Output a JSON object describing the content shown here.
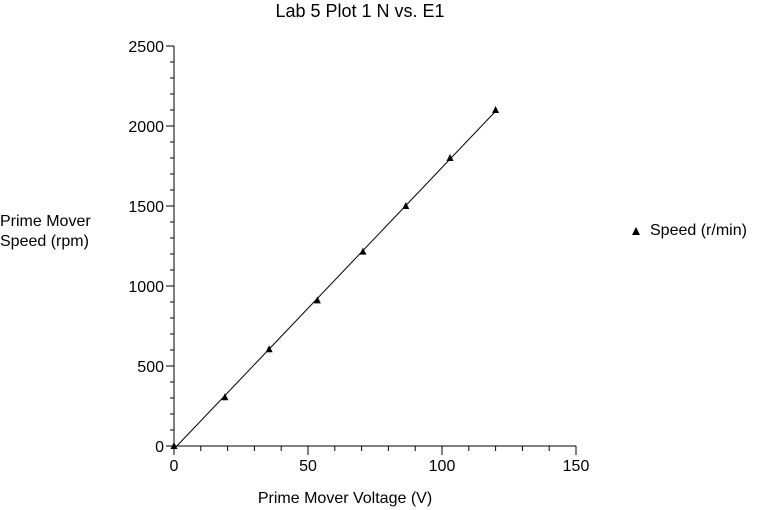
{
  "chart_data": {
    "type": "scatter",
    "title": "Lab 5 Plot 1  N vs. E1",
    "xlabel": "Prime Mover Voltage (V)",
    "ylabel": "Prime Mover\nSpeed (rpm)",
    "xlim": [
      0,
      150
    ],
    "ylim": [
      0,
      2500
    ],
    "xticks": [
      0,
      50,
      100,
      150
    ],
    "yticks": [
      0,
      500,
      1000,
      1500,
      2000,
      2500
    ],
    "x_minor_step": 10,
    "y_minor_step": 100,
    "grid": false,
    "legend_position": "right",
    "trendline": "linear",
    "series": [
      {
        "name": "Speed (r/min)",
        "marker": "triangle",
        "color": "#000000",
        "x": [
          0,
          19,
          35.5,
          53.5,
          70.5,
          86.5,
          103,
          120
        ],
        "y": [
          0,
          305,
          605,
          910,
          1215,
          1500,
          1800,
          2100
        ]
      }
    ]
  }
}
